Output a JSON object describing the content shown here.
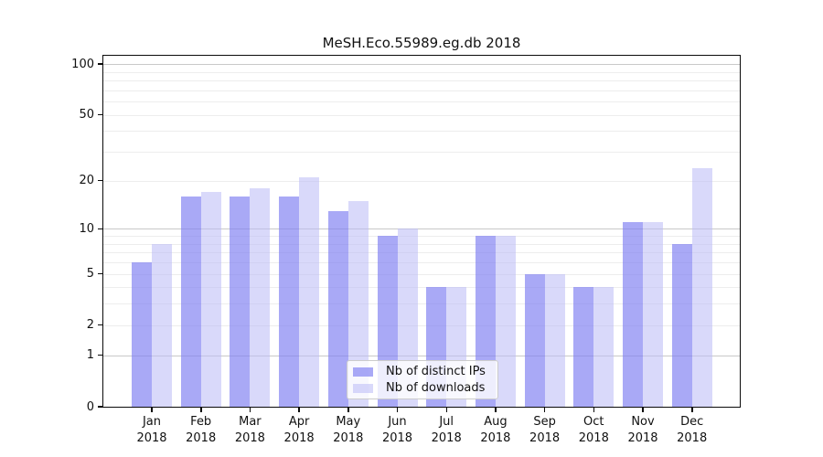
{
  "figure": {
    "title": "MeSH.Eco.55989.eg.db 2018"
  },
  "legend": {
    "items": [
      {
        "key": "ips",
        "label": "Nb of distinct IPs"
      },
      {
        "key": "downloads",
        "label": "Nb of downloads"
      }
    ]
  },
  "chart_data": {
    "type": "bar",
    "title": "MeSH.Eco.55989.eg.db 2018",
    "categories": [
      "Jan",
      "Feb",
      "Mar",
      "Apr",
      "May",
      "Jun",
      "Jul",
      "Aug",
      "Sep",
      "Oct",
      "Nov",
      "Dec"
    ],
    "x_sublabel": "2018",
    "series": [
      {
        "key": "ips",
        "name": "Nb of distinct IPs",
        "color": "rgba(124,124,241,0.66)",
        "values": [
          6,
          16,
          16,
          16,
          13,
          9,
          4,
          9,
          5,
          4,
          11,
          8
        ]
      },
      {
        "key": "downloads",
        "name": "Nb of downloads",
        "color": "rgba(185,185,246,0.55)",
        "values": [
          8,
          17,
          18,
          21,
          15,
          10,
          4,
          9,
          5,
          4,
          11,
          24
        ]
      }
    ],
    "yscale": "log10(value+1)",
    "ylim": [
      0,
      112
    ],
    "yticks": [
      100,
      50,
      20,
      10,
      5,
      2,
      1,
      0
    ],
    "major_gridlines": [
      1,
      10,
      100
    ],
    "minor_gridlines": [
      2,
      3,
      4,
      5,
      6,
      7,
      8,
      9,
      20,
      30,
      40,
      50,
      60,
      70,
      80,
      90
    ],
    "grid": true,
    "legend_position": "lower-center",
    "colors": {
      "axis": "#0a0a0a",
      "major_grid": "#c9c9c9",
      "minor_grid": "#ededed",
      "text": "#111111"
    }
  }
}
